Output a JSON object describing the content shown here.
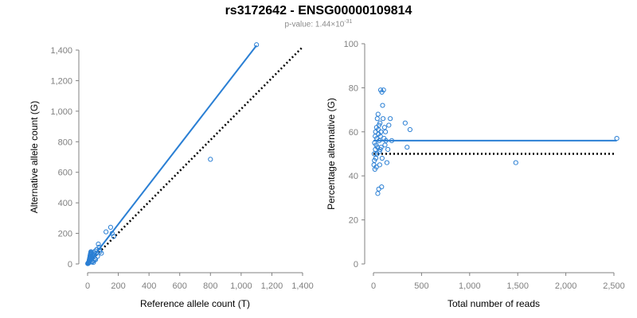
{
  "header": {
    "title": "rs3172642 - ENSG00000109814",
    "subtitle_prefix": "p-value: 1.44×10",
    "subtitle_exponent": "-31"
  },
  "colors": {
    "points": "#2a7fd4",
    "fit_line": "#2a7fd4",
    "reference_line": "#000000",
    "axis": "#808080",
    "tick_labels": "#808080"
  },
  "chart_data": [
    {
      "type": "scatter",
      "title": "",
      "xlabel": "Reference allele count (T)",
      "ylabel": "Alternative allele count (G)",
      "xlim": [
        0,
        1400
      ],
      "ylim": [
        0,
        1400
      ],
      "xticks": [
        0,
        200,
        400,
        600,
        800,
        1000,
        1200,
        1400
      ],
      "yticks": [
        0,
        200,
        400,
        600,
        800,
        1000,
        1200,
        1400
      ],
      "xtick_labels": [
        "0",
        "200",
        "400",
        "600",
        "800",
        "1,000",
        "1,200",
        "1,400"
      ],
      "ytick_labels": [
        "0",
        "200",
        "400",
        "600",
        "800",
        "1,000",
        "1,200",
        "1,400"
      ],
      "grid": false,
      "points": [
        [
          1,
          2
        ],
        [
          2,
          3
        ],
        [
          3,
          5
        ],
        [
          4,
          6
        ],
        [
          5,
          4
        ],
        [
          6,
          10
        ],
        [
          7,
          8
        ],
        [
          8,
          12
        ],
        [
          9,
          15
        ],
        [
          10,
          20
        ],
        [
          11,
          25
        ],
        [
          12,
          30
        ],
        [
          13,
          35
        ],
        [
          14,
          40
        ],
        [
          15,
          45
        ],
        [
          16,
          50
        ],
        [
          17,
          55
        ],
        [
          18,
          60
        ],
        [
          19,
          65
        ],
        [
          20,
          70
        ],
        [
          21,
          75
        ],
        [
          22,
          80
        ],
        [
          23,
          65
        ],
        [
          25,
          30
        ],
        [
          28,
          12
        ],
        [
          30,
          40
        ],
        [
          32,
          18
        ],
        [
          35,
          55
        ],
        [
          38,
          10
        ],
        [
          40,
          75
        ],
        [
          42,
          22
        ],
        [
          45,
          60
        ],
        [
          48,
          35
        ],
        [
          50,
          85
        ],
        [
          52,
          28
        ],
        [
          55,
          70
        ],
        [
          60,
          95
        ],
        [
          65,
          50
        ],
        [
          70,
          130
        ],
        [
          75,
          110
        ],
        [
          78,
          90
        ],
        [
          80,
          80
        ],
        [
          90,
          70
        ],
        [
          120,
          210
        ],
        [
          150,
          240
        ],
        [
          160,
          200
        ],
        [
          170,
          180
        ],
        [
          800,
          685
        ],
        [
          1100,
          1435
        ]
      ],
      "fit_line": {
        "x": [
          0,
          1100
        ],
        "y": [
          0,
          1430
        ]
      },
      "reference_line": {
        "x": [
          0,
          1400
        ],
        "y": [
          0,
          1420
        ]
      }
    },
    {
      "type": "scatter",
      "title": "",
      "xlabel": "Total number of reads",
      "ylabel": "Percentage alternative (G)",
      "xlim": [
        0,
        2500
      ],
      "ylim": [
        0,
        100
      ],
      "xticks": [
        0,
        500,
        1000,
        1500,
        2000,
        2500
      ],
      "yticks": [
        0,
        20,
        40,
        60,
        80,
        100
      ],
      "xtick_labels": [
        "0",
        "500",
        "1,000",
        "1,500",
        "2,000",
        "2,500"
      ],
      "ytick_labels": [
        "0",
        "20",
        "40",
        "60",
        "80",
        "100"
      ],
      "grid": false,
      "points": [
        [
          5,
          45
        ],
        [
          8,
          50
        ],
        [
          10,
          47
        ],
        [
          12,
          55
        ],
        [
          15,
          43
        ],
        [
          18,
          58
        ],
        [
          20,
          52
        ],
        [
          22,
          60
        ],
        [
          25,
          48
        ],
        [
          28,
          54
        ],
        [
          30,
          44
        ],
        [
          32,
          62
        ],
        [
          35,
          57
        ],
        [
          38,
          50
        ],
        [
          40,
          66
        ],
        [
          42,
          53
        ],
        [
          45,
          32
        ],
        [
          48,
          68
        ],
        [
          50,
          61
        ],
        [
          52,
          59
        ],
        [
          55,
          34
        ],
        [
          58,
          63
        ],
        [
          60,
          56
        ],
        [
          62,
          51
        ],
        [
          65,
          45
        ],
        [
          68,
          64
        ],
        [
          70,
          52
        ],
        [
          72,
          58
        ],
        [
          75,
          79
        ],
        [
          78,
          60
        ],
        [
          80,
          53
        ],
        [
          85,
          35
        ],
        [
          88,
          78
        ],
        [
          90,
          48
        ],
        [
          95,
          72
        ],
        [
          100,
          66
        ],
        [
          105,
          79
        ],
        [
          110,
          57
        ],
        [
          115,
          62
        ],
        [
          120,
          54
        ],
        [
          125,
          60
        ],
        [
          130,
          56
        ],
        [
          140,
          46
        ],
        [
          150,
          52
        ],
        [
          160,
          63
        ],
        [
          175,
          66
        ],
        [
          190,
          56
        ],
        [
          330,
          64
        ],
        [
          350,
          53
        ],
        [
          380,
          61
        ],
        [
          1480,
          46
        ],
        [
          2530,
          57
        ]
      ],
      "fit_line": {
        "x": [
          0,
          2530
        ],
        "y": [
          56,
          56
        ]
      },
      "reference_line": {
        "x": [
          0,
          2500
        ],
        "y": [
          50,
          50
        ]
      }
    }
  ]
}
